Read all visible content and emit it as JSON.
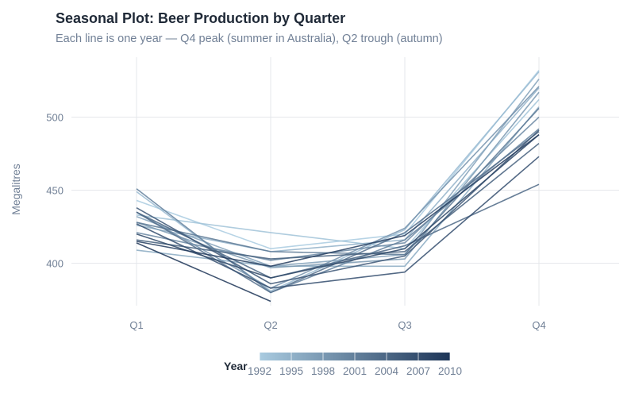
{
  "chart_data": {
    "type": "line",
    "title": "Seasonal Plot: Beer Production by Quarter",
    "subtitle": "Each line is one year — Q4 peak (summer in Australia), Q2 trough (autumn)",
    "xlabel": "",
    "ylabel": "Megalitres",
    "categories": [
      "Q1",
      "Q2",
      "Q3",
      "Q4"
    ],
    "ylim": [
      371,
      541
    ],
    "yticks": [
      400,
      450,
      500
    ],
    "grid": true,
    "legend": {
      "title": "Year",
      "type": "colorbar",
      "placement": "bottom",
      "ticks": [
        "1992",
        "1995",
        "1998",
        "2001",
        "2004",
        "2007",
        "2010"
      ],
      "low_color": "#a9cbe0",
      "high_color": "#1d3557"
    },
    "series": [
      {
        "year": 1992,
        "values": [
          443,
          410,
          420,
          532
        ]
      },
      {
        "year": 1993,
        "values": [
          433,
          421,
          410,
          512
        ]
      },
      {
        "year": 1994,
        "values": [
          449,
          381,
          423,
          531
        ]
      },
      {
        "year": 1995,
        "values": [
          426,
          408,
          416,
          520
        ]
      },
      {
        "year": 1996,
        "values": [
          409,
          398,
          398,
          507
        ]
      },
      {
        "year": 1997,
        "values": [
          432,
          398,
          406,
          526
        ]
      },
      {
        "year": 1998,
        "values": [
          428,
          397,
          403,
          517
        ]
      },
      {
        "year": 1999,
        "values": [
          435,
          383,
          424,
          521
        ]
      },
      {
        "year": 2000,
        "values": [
          421,
          402,
          414,
          500
        ]
      },
      {
        "year": 2001,
        "values": [
          451,
          380,
          416,
          492
        ]
      },
      {
        "year": 2002,
        "values": [
          428,
          408,
          406,
          506
        ]
      },
      {
        "year": 2003,
        "values": [
          435,
          380,
          421,
          490
        ]
      },
      {
        "year": 2004,
        "values": [
          435,
          390,
          412,
          454
        ]
      },
      {
        "year": 2005,
        "values": [
          416,
          403,
          408,
          482
        ]
      },
      {
        "year": 2006,
        "values": [
          438,
          386,
          405,
          491
        ]
      },
      {
        "year": 2007,
        "values": [
          427,
          383,
          394,
          473
        ]
      },
      {
        "year": 2008,
        "values": [
          420,
          390,
          410,
          488
        ]
      },
      {
        "year": 2009,
        "values": [
          415,
          398,
          419,
          488
        ]
      },
      {
        "year": 2010,
        "values": [
          414,
          374,
          null,
          null
        ]
      }
    ]
  }
}
